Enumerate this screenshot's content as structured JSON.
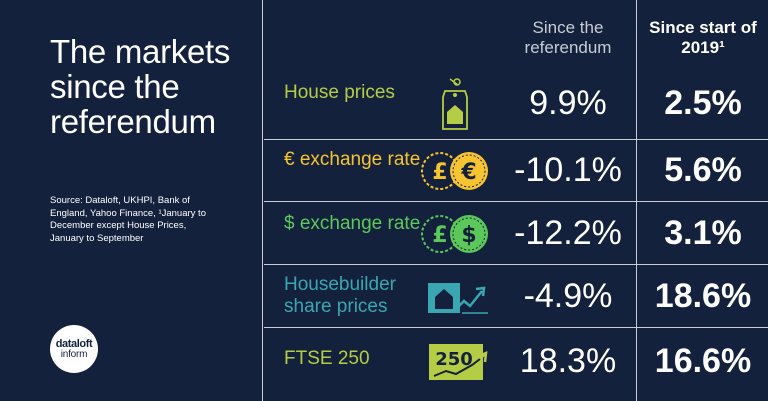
{
  "title": "The markets since the referendum",
  "source": "Source: Dataloft, UKHPI, Bank of England, Yahoo Finance, ¹January to December except House Prices, January to September",
  "logo": {
    "line1": "dataloft",
    "line2": "inform"
  },
  "headers": {
    "since_referendum": "Since the referendum",
    "since_2019": "Since start of 2019¹"
  },
  "colors": {
    "background": "#14213d",
    "green": "#b5cd45",
    "yellow": "#f6c431",
    "lime": "#5cc85a",
    "teal": "#3aa6b1",
    "grey": "#c9ccd3"
  },
  "rows": [
    {
      "label": "House prices",
      "icon": "house-tag-icon",
      "color": "#b5cd45",
      "since_referendum": "9.9%",
      "since_2019": "2.5%"
    },
    {
      "label": "€ exchange rate",
      "icon": "pound-euro-coins-icon",
      "color": "#f6c431",
      "since_referendum": "-10.1%",
      "since_2019": "5.6%"
    },
    {
      "label": "$ exchange rate",
      "icon": "pound-dollar-coins-icon",
      "color": "#5cc85a",
      "since_referendum": "-12.2%",
      "since_2019": "3.1%"
    },
    {
      "label": "Housebuilder share prices",
      "icon": "house-chart-icon",
      "color": "#3aa6b1",
      "since_referendum": "-4.9%",
      "since_2019": "18.6%"
    },
    {
      "label": "FTSE 250",
      "icon": "ftse-chart-icon",
      "color": "#b5cd45",
      "icon_text": "250",
      "since_referendum": "18.3%",
      "since_2019": "16.6%"
    }
  ]
}
